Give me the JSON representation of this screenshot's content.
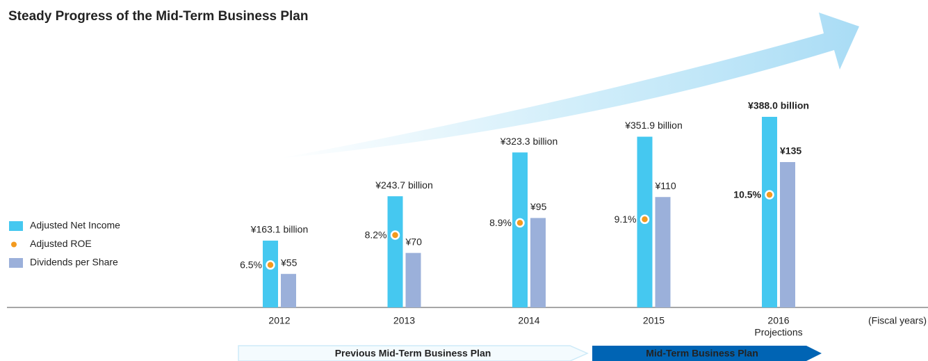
{
  "chart_data": {
    "type": "bar",
    "title": "Steady Progress of the Mid-Term Business Plan",
    "categories": [
      "2012",
      "2013",
      "2014",
      "2015",
      "2016"
    ],
    "category_notes": [
      null,
      null,
      null,
      null,
      "Projections"
    ],
    "x_label": "(Fiscal years)",
    "series": [
      {
        "name": "Adjusted Net Income",
        "type": "bar",
        "color": "#45c8f0",
        "ylim": [
          41.7,
          575
        ],
        "values": [
          163.1,
          243.7,
          323.3,
          351.9,
          388.0
        ],
        "value_labels": [
          "¥163.1 billion",
          "¥243.7 billion",
          "¥323.3 billion",
          "¥351.9 billion",
          "¥388.0 billion"
        ]
      },
      {
        "name": "Adjusted ROE",
        "type": "dot",
        "color": "#f39a1e",
        "ylim": [
          4.08,
          20.8
        ],
        "values": [
          6.5,
          8.2,
          8.9,
          9.1,
          10.5
        ],
        "value_labels": [
          "6.5%",
          "8.2%",
          "8.9%",
          "9.1%",
          "10.5%"
        ]
      },
      {
        "name": "Dividends per Share",
        "type": "bar",
        "color": "#9bb0da",
        "ylim": [
          31,
          241
        ],
        "values": [
          55,
          70,
          95,
          110,
          135
        ],
        "value_labels": [
          "¥55",
          "¥70",
          "¥95",
          "¥110",
          "¥135"
        ]
      }
    ],
    "periods": [
      {
        "label": "Previous Mid-Term Business Plan",
        "style": "outline"
      },
      {
        "label": "Mid-Term Business Plan",
        "style": "filled"
      }
    ]
  }
}
